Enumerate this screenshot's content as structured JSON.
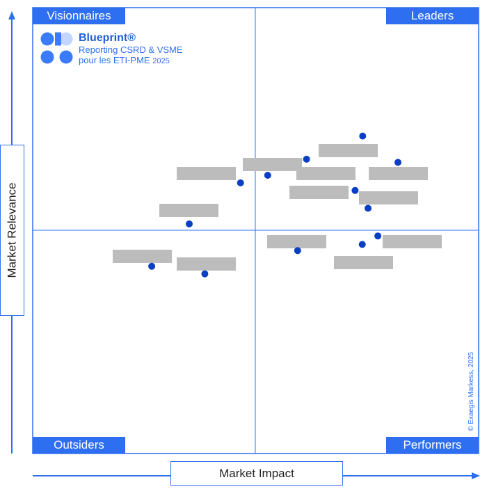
{
  "chart_data": {
    "type": "scatter",
    "xlabel": "Market Impact",
    "ylabel": "Market Relevance",
    "quadrants": {
      "top_left": "Visionnaires",
      "top_right": "Leaders",
      "bottom_left": "Outsiders",
      "bottom_right": "Performers"
    },
    "points": [
      {
        "x": 74.0,
        "y": 71.2
      },
      {
        "x": 81.9,
        "y": 65.3
      },
      {
        "x": 61.4,
        "y": 66.0
      },
      {
        "x": 52.7,
        "y": 62.4
      },
      {
        "x": 46.6,
        "y": 60.7
      },
      {
        "x": 72.3,
        "y": 59.0
      },
      {
        "x": 75.2,
        "y": 55.0
      },
      {
        "x": 35.1,
        "y": 51.5
      },
      {
        "x": 77.4,
        "y": 48.8
      },
      {
        "x": 73.9,
        "y": 46.9
      },
      {
        "x": 59.4,
        "y": 45.5
      },
      {
        "x": 26.7,
        "y": 42.0
      },
      {
        "x": 38.6,
        "y": 40.3
      }
    ],
    "grid": false
  },
  "branding": {
    "logo_title": "Blueprint®",
    "logo_line1": "Reporting CSRD & VSME",
    "logo_line2": "pour les ETI-PME",
    "logo_year": "2025",
    "copyright": "© Exaegis Markess, 2025"
  },
  "colors": {
    "accent": "#2d6ff0",
    "point": "#0a3ec4",
    "placeholder": "#bcbcbc"
  }
}
